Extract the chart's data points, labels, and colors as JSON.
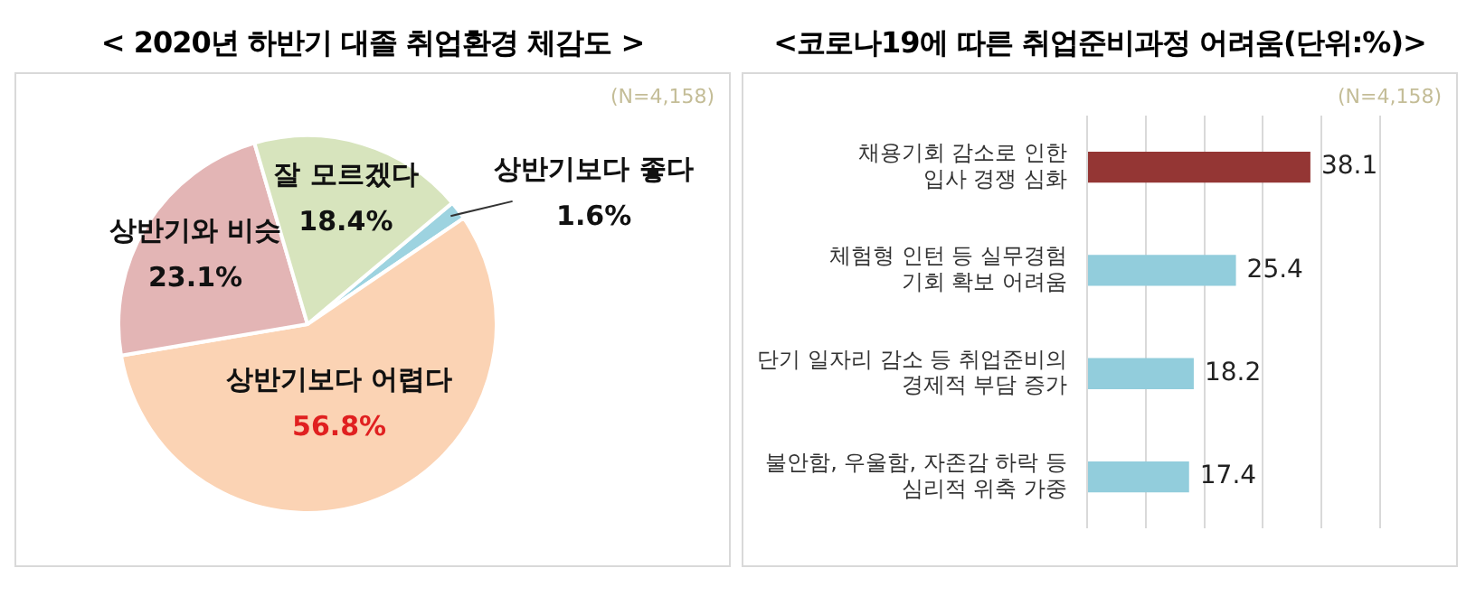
{
  "chart_data": [
    {
      "type": "pie",
      "title": "< 2020년 하반기 대졸 취업환경 체감도 >",
      "categories": [
        "상반기보다 좋다",
        "상반기보다 어렵다",
        "상반기와 비슷",
        "잘 모르겠다"
      ],
      "values": [
        1.6,
        56.8,
        23.1,
        18.4
      ],
      "colors": [
        "#9dd3e0",
        "#fbd3b4",
        "#e3b5b5",
        "#d7e4bd"
      ],
      "value_labels": [
        "1.6%",
        "56.8%",
        "23.1%",
        "18.4%"
      ],
      "annotations": [
        "(N=4,158)"
      ]
    },
    {
      "type": "bar",
      "orientation": "horizontal",
      "title": "<코로나19에 따른 취업준비과정 어려움(단위:%)>",
      "categories": [
        "채용기회 감소로 인한\n입사 경쟁 심화",
        "체험형 인턴 등 실무경험\n기회 확보 어려움",
        "단기 일자리 감소 등 취업준비의\n경제적 부담 증가",
        "불안함, 우울함, 자존감 하락 등\n심리적 위축 가중"
      ],
      "values": [
        38.1,
        25.4,
        18.2,
        17.4
      ],
      "colors": [
        "#943634",
        "#92cddc",
        "#92cddc",
        "#92cddc"
      ],
      "xlim": [
        0,
        50
      ],
      "xticks": [
        {
          "value": 0,
          "label": null
        },
        {
          "value": 10,
          "label": null
        },
        {
          "value": 20,
          "label": null
        },
        {
          "value": 30,
          "label": null
        },
        {
          "value": 40,
          "label": null
        },
        {
          "value": 50,
          "label": null
        }
      ],
      "grid": "x",
      "tick_labels": "y",
      "data_labels": true,
      "annotations": [
        "(N=4,158)"
      ]
    }
  ]
}
